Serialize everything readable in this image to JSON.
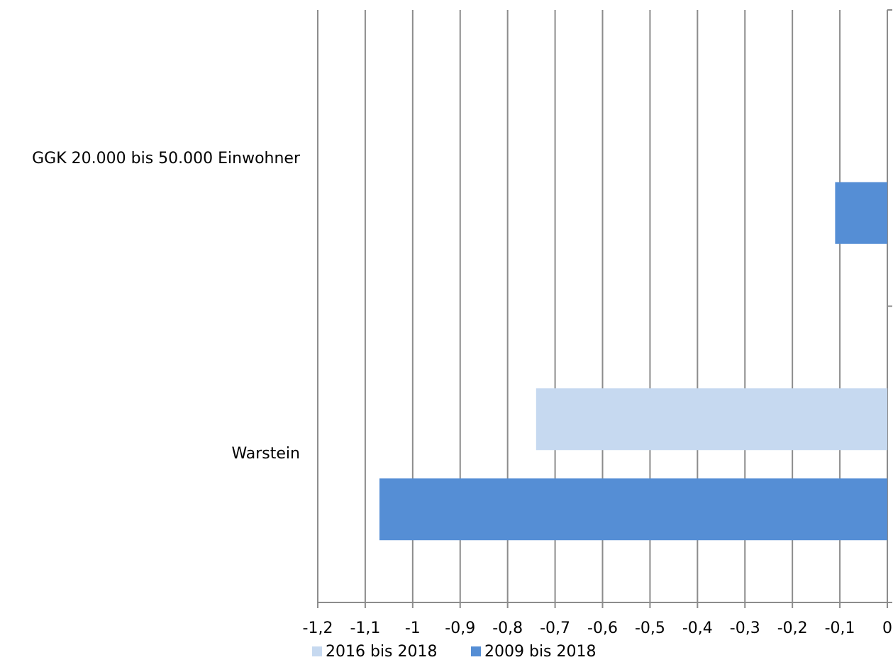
{
  "chart_data": {
    "type": "bar",
    "orientation": "horizontal",
    "categories": [
      "GGK 20.000 bis 50.000 Einwohner",
      "Warstein"
    ],
    "series": [
      {
        "name": "2016 bis 2018",
        "color": "#c6d9f0",
        "values": [
          0,
          -0.74
        ]
      },
      {
        "name": "2009 bis 2018",
        "color": "#558ed5",
        "values": [
          -0.11,
          -1.07
        ]
      }
    ],
    "x_ticks": [
      "-1,2",
      "-1,1",
      "-1",
      "-0,9",
      "-0,8",
      "-0,7",
      "-0,6",
      "-0,5",
      "-0,4",
      "-0,3",
      "-0,2",
      "-0,1",
      "0"
    ],
    "xlim": [
      -1.2,
      0
    ],
    "grid": "vertical",
    "legend_position": "bottom",
    "title": "",
    "xlabel": "",
    "ylabel": ""
  }
}
